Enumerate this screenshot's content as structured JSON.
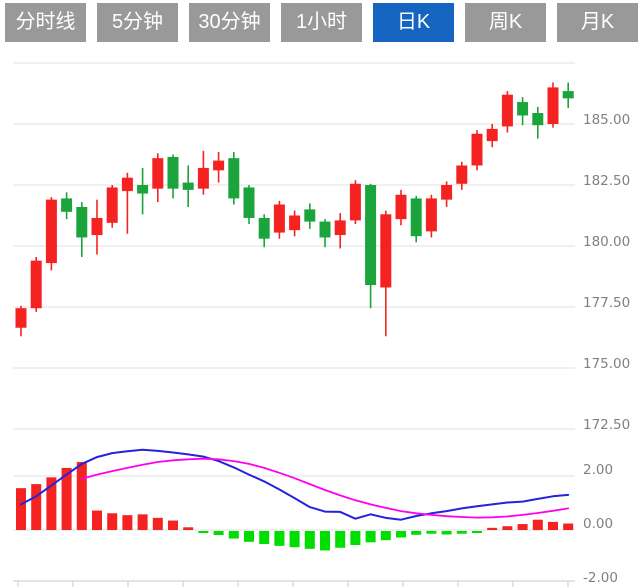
{
  "tabs": [
    {
      "label": "分时线",
      "active": false
    },
    {
      "label": "5分钟",
      "active": false
    },
    {
      "label": "30分钟",
      "active": false
    },
    {
      "label": "1小时",
      "active": false
    },
    {
      "label": "日K",
      "active": true
    },
    {
      "label": "周K",
      "active": false
    },
    {
      "label": "月K",
      "active": false
    }
  ],
  "colors": {
    "up": "#f52222",
    "down": "#1ba43b",
    "macd_positive": "#f52222",
    "macd_negative": "#00dd00",
    "dif_line": "#2323dd",
    "dea_line": "#ff00ee",
    "grid": "#e0e0e0",
    "axis": "#c9c9c9",
    "tick_label": "#808080",
    "tab_bg": "#999999",
    "tab_active_bg": "#1565c0",
    "tab_text": "#ffffff",
    "background": "#ffffff"
  },
  "chart_data": {
    "type": "candlestick",
    "title": "",
    "legend_position": "none",
    "grid": true,
    "panels": [
      {
        "name": "price",
        "type": "candlestick",
        "ylim": [
          172.5,
          187.5
        ],
        "y_ticks": [
          {
            "label": "",
            "value": 187.5
          },
          {
            "label": "185.00",
            "value": 185.0
          },
          {
            "label": "182.50",
            "value": 182.5
          },
          {
            "label": "180.00",
            "value": 180.0
          },
          {
            "label": "177.50",
            "value": 177.5
          },
          {
            "label": "175.00",
            "value": 175.0
          },
          {
            "label": "172.50",
            "value": 172.5
          }
        ],
        "candles": [
          {
            "o": 176.65,
            "h": 177.55,
            "l": 176.3,
            "c": 177.45
          },
          {
            "o": 177.45,
            "h": 179.55,
            "l": 177.3,
            "c": 179.4
          },
          {
            "o": 179.3,
            "h": 182.0,
            "l": 179.0,
            "c": 181.9
          },
          {
            "o": 181.95,
            "h": 182.2,
            "l": 181.1,
            "c": 181.4
          },
          {
            "o": 181.6,
            "h": 181.8,
            "l": 179.55,
            "c": 180.35
          },
          {
            "o": 180.45,
            "h": 181.9,
            "l": 179.65,
            "c": 181.15
          },
          {
            "o": 180.95,
            "h": 182.5,
            "l": 180.75,
            "c": 182.4
          },
          {
            "o": 182.25,
            "h": 183.0,
            "l": 180.5,
            "c": 182.8
          },
          {
            "o": 182.5,
            "h": 183.2,
            "l": 181.3,
            "c": 182.15
          },
          {
            "o": 182.35,
            "h": 183.8,
            "l": 181.8,
            "c": 183.6
          },
          {
            "o": 183.65,
            "h": 183.75,
            "l": 181.95,
            "c": 182.35
          },
          {
            "o": 182.6,
            "h": 183.3,
            "l": 181.6,
            "c": 182.3
          },
          {
            "o": 182.35,
            "h": 183.9,
            "l": 182.1,
            "c": 183.2
          },
          {
            "o": 183.1,
            "h": 183.85,
            "l": 182.6,
            "c": 183.5
          },
          {
            "o": 183.6,
            "h": 183.85,
            "l": 181.7,
            "c": 181.95
          },
          {
            "o": 182.4,
            "h": 182.5,
            "l": 180.9,
            "c": 181.15
          },
          {
            "o": 181.15,
            "h": 181.3,
            "l": 179.95,
            "c": 180.3
          },
          {
            "o": 180.55,
            "h": 181.85,
            "l": 180.3,
            "c": 181.7
          },
          {
            "o": 180.65,
            "h": 181.45,
            "l": 180.4,
            "c": 181.25
          },
          {
            "o": 181.5,
            "h": 181.75,
            "l": 180.7,
            "c": 181.0
          },
          {
            "o": 181.0,
            "h": 181.1,
            "l": 179.95,
            "c": 180.35
          },
          {
            "o": 180.45,
            "h": 181.35,
            "l": 179.9,
            "c": 181.05
          },
          {
            "o": 181.05,
            "h": 182.7,
            "l": 180.9,
            "c": 182.55
          },
          {
            "o": 182.5,
            "h": 182.55,
            "l": 177.45,
            "c": 178.4
          },
          {
            "o": 178.3,
            "h": 181.45,
            "l": 176.3,
            "c": 181.3
          },
          {
            "o": 181.1,
            "h": 182.3,
            "l": 180.85,
            "c": 182.1
          },
          {
            "o": 181.95,
            "h": 182.05,
            "l": 180.15,
            "c": 180.4
          },
          {
            "o": 180.6,
            "h": 182.1,
            "l": 180.35,
            "c": 181.95
          },
          {
            "o": 181.9,
            "h": 182.65,
            "l": 181.6,
            "c": 182.5
          },
          {
            "o": 182.55,
            "h": 183.45,
            "l": 182.3,
            "c": 183.3
          },
          {
            "o": 183.3,
            "h": 184.75,
            "l": 183.1,
            "c": 184.6
          },
          {
            "o": 184.3,
            "h": 185.0,
            "l": 184.05,
            "c": 184.8
          },
          {
            "o": 184.9,
            "h": 186.35,
            "l": 184.65,
            "c": 186.2
          },
          {
            "o": 185.9,
            "h": 186.1,
            "l": 184.95,
            "c": 185.35
          },
          {
            "o": 185.45,
            "h": 185.7,
            "l": 184.4,
            "c": 184.95
          },
          {
            "o": 185.0,
            "h": 186.7,
            "l": 184.85,
            "c": 186.5
          },
          {
            "o": 186.35,
            "h": 186.7,
            "l": 185.65,
            "c": 186.05
          }
        ]
      },
      {
        "name": "macd",
        "type": "macd",
        "ylim": [
          -2.0,
          2.0
        ],
        "y_ticks": [
          {
            "label": "2.00",
            "value": 2.0
          },
          {
            "label": "0.00",
            "value": 0.0
          },
          {
            "label": "-2.00",
            "value": -2.0
          }
        ],
        "histogram": [
          1.55,
          1.7,
          1.95,
          2.3,
          2.52,
          0.72,
          0.62,
          0.55,
          0.58,
          0.45,
          0.35,
          0.1,
          -0.06,
          -0.15,
          -0.28,
          -0.4,
          -0.48,
          -0.55,
          -0.6,
          -0.66,
          -0.72,
          -0.62,
          -0.52,
          -0.42,
          -0.34,
          -0.24,
          -0.14,
          -0.1,
          -0.13,
          -0.1,
          -0.06,
          0.08,
          0.14,
          0.22,
          0.38,
          0.3,
          0.24
        ],
        "dif": [
          0.95,
          1.25,
          1.65,
          2.05,
          2.45,
          2.7,
          2.85,
          2.92,
          2.97,
          2.93,
          2.87,
          2.8,
          2.72,
          2.55,
          2.32,
          2.05,
          1.8,
          1.5,
          1.18,
          0.85,
          0.68,
          0.67,
          0.42,
          0.58,
          0.45,
          0.38,
          0.52,
          0.62,
          0.7,
          0.8,
          0.88,
          0.95,
          1.02,
          1.05,
          1.15,
          1.25,
          1.3
        ],
        "dea": [
          null,
          null,
          null,
          null,
          1.9,
          2.05,
          2.18,
          2.3,
          2.42,
          2.52,
          2.58,
          2.62,
          2.64,
          2.62,
          2.55,
          2.45,
          2.3,
          2.12,
          1.92,
          1.7,
          1.48,
          1.28,
          1.1,
          0.95,
          0.82,
          0.7,
          0.62,
          0.56,
          0.51,
          0.48,
          0.46,
          0.47,
          0.5,
          0.56,
          0.63,
          0.71,
          0.8
        ]
      }
    ],
    "x_axis": {
      "labels": [],
      "tick_count": 11
    }
  }
}
